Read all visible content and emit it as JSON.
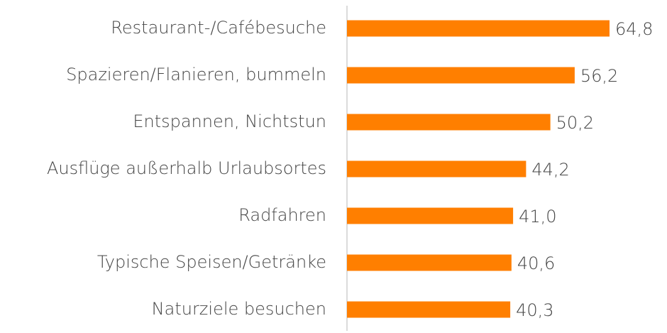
{
  "chart_data": {
    "type": "bar",
    "orientation": "horizontal",
    "categories": [
      "Restaurant-/Cafébesuche",
      "Spazieren/Flanieren, bummeln",
      "Entspannen, Nichtstun",
      "Ausflüge außerhalb Urlaubsortes",
      "Radfahren",
      "Typische Speisen/Getränke",
      "Naturziele besuchen"
    ],
    "values": [
      64.8,
      56.2,
      50.2,
      44.2,
      41.0,
      40.6,
      40.3
    ],
    "value_labels": [
      "64,8",
      "56,2",
      "50,2",
      "44,2",
      "41,0",
      "40,6",
      "40,3"
    ],
    "color": "#ff7f00"
  }
}
